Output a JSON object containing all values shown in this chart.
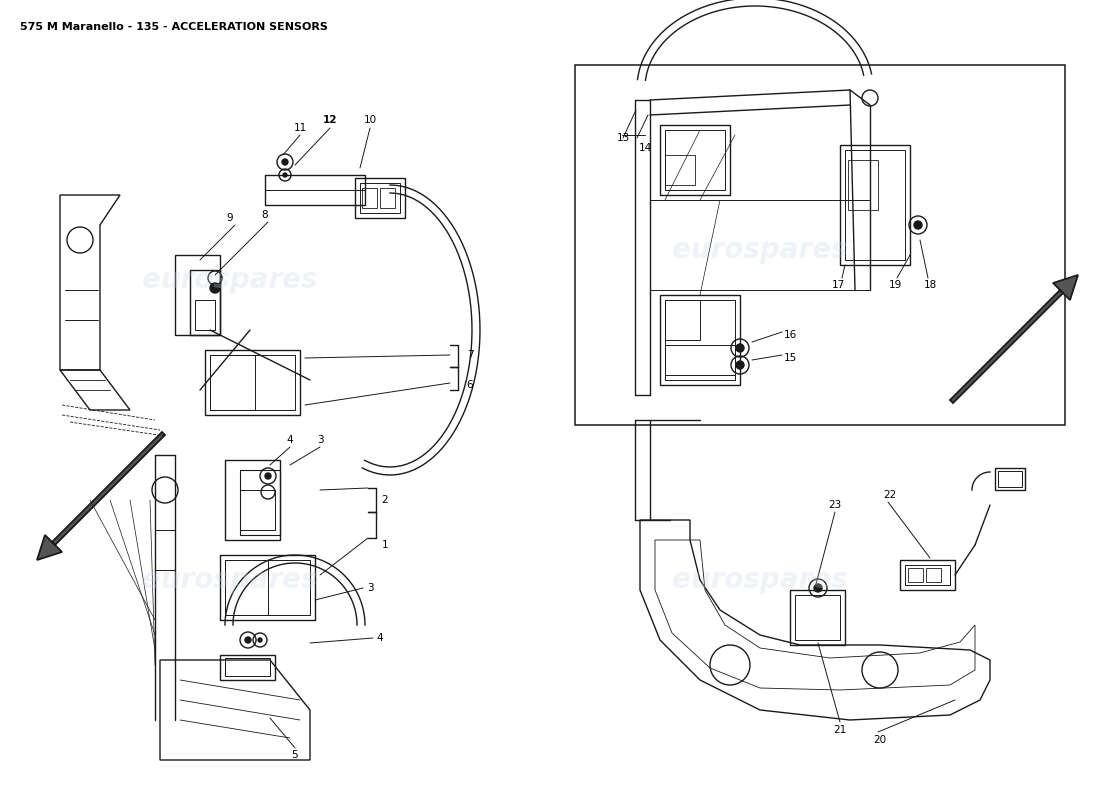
{
  "title": "575 M Maranello - 135 - ACCELERATION SENSORS",
  "title_fontsize": 8,
  "title_color": "#000000",
  "background_color": "#ffffff",
  "watermark_text": "eurospares",
  "watermark_color": "#c8d4e8",
  "watermark_alpha": 0.28,
  "line_color": "#1a1a1a",
  "line_width": 1.0,
  "annotation_fontsize": 7.5
}
